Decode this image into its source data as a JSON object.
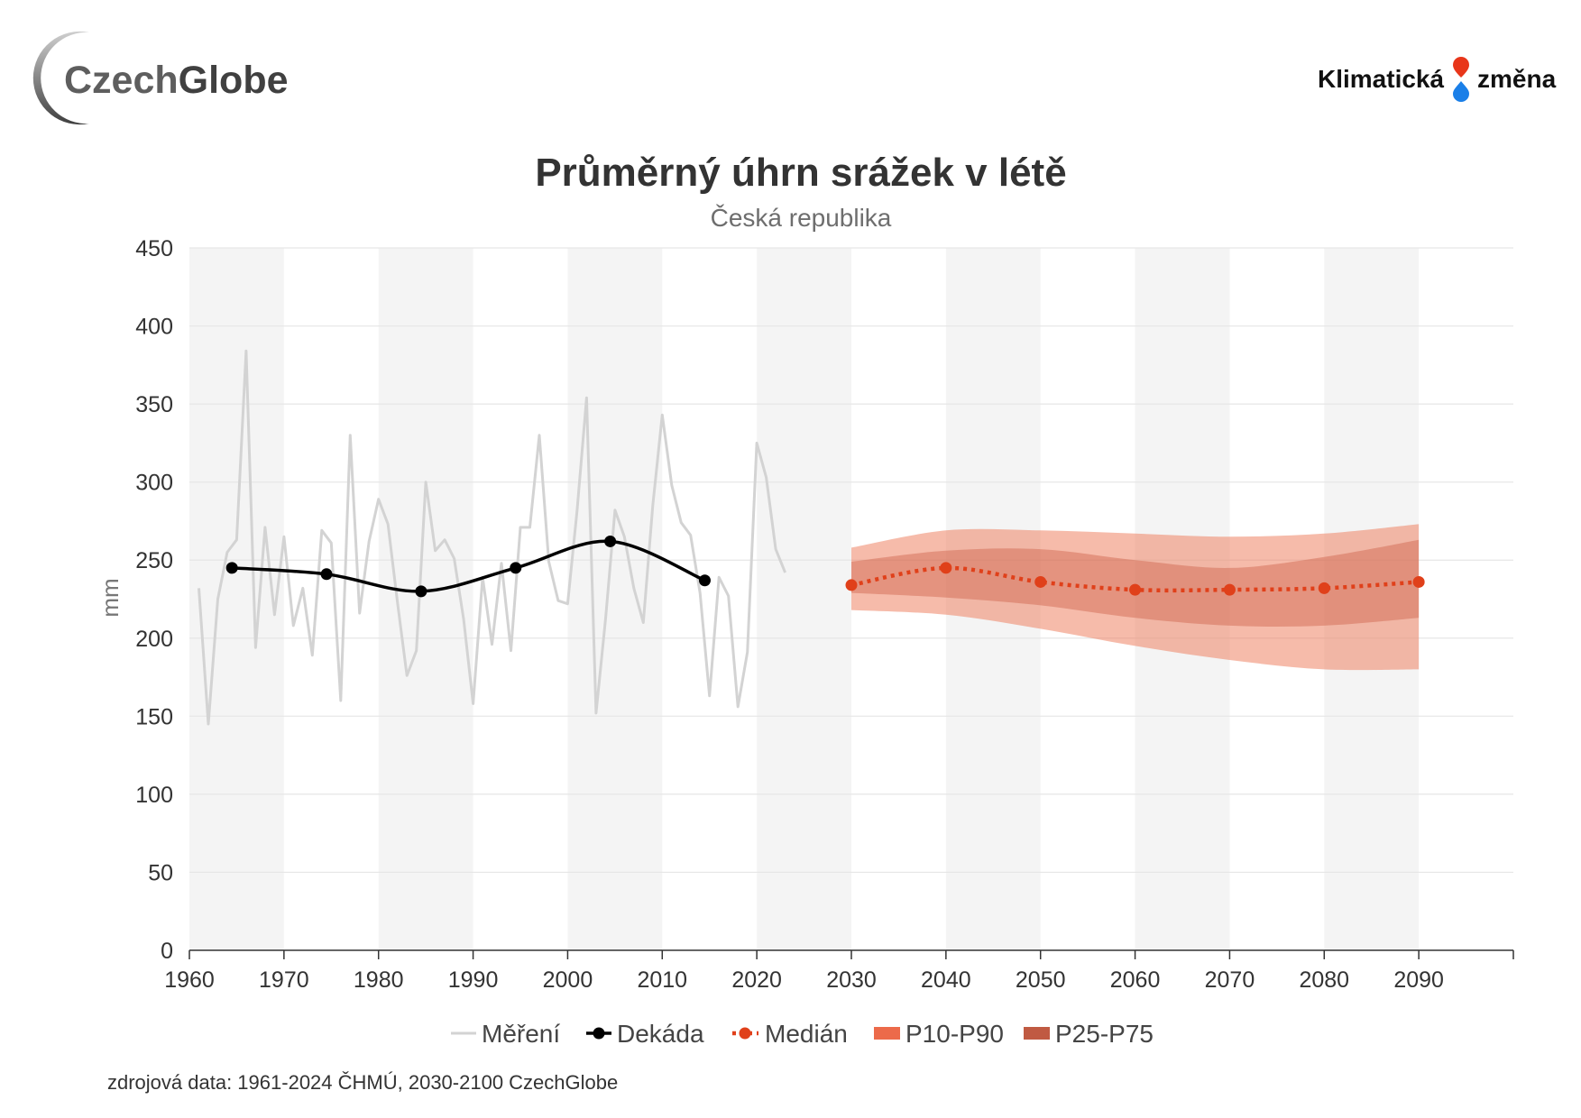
{
  "logos": {
    "czechglobe": {
      "part1": "Czech",
      "part2": "Globe"
    },
    "klimaticka_zmena": {
      "left": "Klimatická",
      "right": "změna"
    }
  },
  "colors": {
    "stripe": "#f4f4f4",
    "grid": "#e6e6e6",
    "axis": "#333333",
    "measured": "#d3d3d3",
    "decade": "#000000",
    "median": "#e0401a",
    "band_outer": "#ee7755",
    "band_inner": "#c34a30",
    "legend_outer": "#ec6a4a",
    "legend_inner": "#c05a42"
  },
  "chart_data": {
    "type": "line",
    "title": "Průměrný úhrn srážek v létě",
    "subtitle": "Česká republika",
    "xlabel": "",
    "ylabel": "mm",
    "xlim": [
      1960,
      2100
    ],
    "ylim": [
      0,
      450
    ],
    "x_ticks": [
      1960,
      1970,
      1980,
      1990,
      2000,
      2010,
      2020,
      2030,
      2040,
      2050,
      2060,
      2070,
      2080,
      2090
    ],
    "y_ticks": [
      0,
      50,
      100,
      150,
      200,
      250,
      300,
      350,
      400,
      450
    ],
    "grid": true,
    "legend_position": "bottom",
    "series": [
      {
        "name": "Měření",
        "x": [
          1961,
          1962,
          1963,
          1964,
          1965,
          1966,
          1967,
          1968,
          1969,
          1970,
          1971,
          1972,
          1973,
          1974,
          1975,
          1976,
          1977,
          1978,
          1979,
          1980,
          1981,
          1982,
          1983,
          1984,
          1985,
          1986,
          1987,
          1988,
          1989,
          1990,
          1991,
          1992,
          1993,
          1994,
          1995,
          1996,
          1997,
          1998,
          1999,
          2000,
          2001,
          2002,
          2003,
          2004,
          2005,
          2006,
          2007,
          2008,
          2009,
          2010,
          2011,
          2012,
          2013,
          2014,
          2015,
          2016,
          2017,
          2018,
          2019,
          2020,
          2021,
          2022,
          2023
        ],
        "values": [
          232,
          145,
          225,
          255,
          263,
          384,
          194,
          271,
          215,
          265,
          208,
          232,
          189,
          269,
          261,
          160,
          330,
          216,
          262,
          289,
          273,
          223,
          176,
          192,
          300,
          256,
          263,
          251,
          212,
          158,
          239,
          196,
          248,
          192,
          271,
          271,
          330,
          249,
          224,
          222,
          282,
          354,
          152,
          212,
          282,
          265,
          232,
          210,
          285,
          343,
          298,
          274,
          266,
          229,
          163,
          239,
          227,
          156,
          191,
          325,
          303,
          257,
          242
        ]
      },
      {
        "name": "Dekáda",
        "x": [
          1964.5,
          1974.5,
          1984.5,
          1994.5,
          2004.5,
          2014.5
        ],
        "values": [
          245,
          241,
          230,
          245,
          262,
          237
        ]
      },
      {
        "name": "Medián",
        "x": [
          2030,
          2040,
          2050,
          2060,
          2070,
          2080,
          2090
        ],
        "values": [
          234,
          245,
          236,
          231,
          231,
          232,
          236
        ]
      },
      {
        "name": "P10-P90",
        "x": [
          2030,
          2040,
          2050,
          2060,
          2070,
          2080,
          2090
        ],
        "lower": [
          218,
          215,
          206,
          195,
          186,
          180,
          180
        ],
        "upper": [
          258,
          269,
          269,
          267,
          265,
          267,
          273
        ]
      },
      {
        "name": "P25-P75",
        "x": [
          2030,
          2040,
          2050,
          2060,
          2070,
          2080,
          2090
        ],
        "lower": [
          229,
          226,
          221,
          213,
          208,
          208,
          213
        ],
        "upper": [
          249,
          256,
          257,
          250,
          245,
          252,
          263
        ]
      }
    ]
  },
  "source": "zdrojová data: 1961-2024 ČHMÚ, 2030-2100 CzechGlobe"
}
